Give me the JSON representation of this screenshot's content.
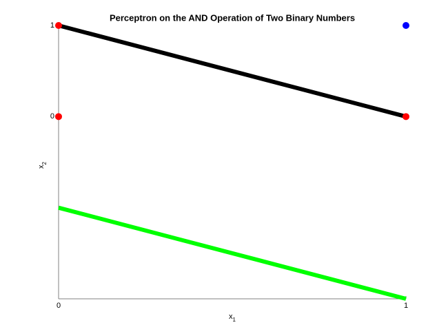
{
  "chart_data": {
    "type": "scatter",
    "title": "Perceptron on the AND Operation of Two Binary Numbers",
    "xlabel": {
      "text": "x",
      "subscript": "1"
    },
    "ylabel": {
      "text": "x",
      "subscript": "2"
    },
    "xlim": [
      0,
      1
    ],
    "ylim": [
      -2,
      1
    ],
    "xticks": [
      0,
      1
    ],
    "yticks": [
      0,
      1
    ],
    "grid": false,
    "series": [
      {
        "mode": "markers",
        "color": "#ff0000",
        "x": [
          0,
          0,
          1
        ],
        "y": [
          1,
          0,
          0
        ]
      },
      {
        "mode": "markers",
        "color": "#0000ff",
        "x": [
          1
        ],
        "y": [
          1
        ]
      },
      {
        "mode": "line",
        "color": "#000000",
        "x": [
          0,
          1
        ],
        "y": [
          1,
          0
        ]
      },
      {
        "mode": "line",
        "color": "#00ff00",
        "x": [
          0,
          1
        ],
        "y": [
          -1,
          -2
        ]
      }
    ]
  }
}
